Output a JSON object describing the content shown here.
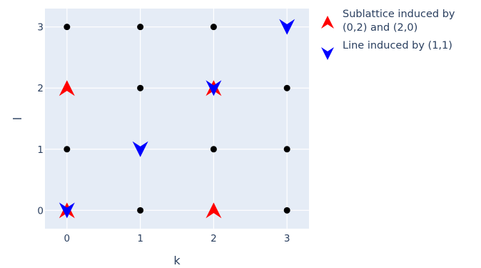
{
  "chart_data": {
    "type": "scatter",
    "xlabel": "k",
    "ylabel": "l",
    "xlim": [
      -0.3,
      3.3
    ],
    "ylim": [
      -0.3,
      3.3
    ],
    "x_ticks": [
      0,
      1,
      2,
      3
    ],
    "y_ticks": [
      0,
      1,
      2,
      3
    ],
    "x_tick_labels": [
      "0",
      "1",
      "2",
      "3"
    ],
    "y_tick_labels": [
      "0",
      "1",
      "2",
      "3"
    ],
    "grid": true,
    "legend_position": "top-right",
    "grid_points": {
      "color": "#000000",
      "marker": "circle",
      "points": [
        [
          0,
          3
        ],
        [
          1,
          3
        ],
        [
          2,
          3
        ],
        [
          1,
          2
        ],
        [
          3,
          2
        ],
        [
          0,
          1
        ],
        [
          2,
          1
        ],
        [
          3,
          1
        ],
        [
          1,
          0
        ],
        [
          3,
          0
        ]
      ]
    },
    "series": [
      {
        "name": "Sublattice induced by (0,2) and (2,0)",
        "legend_lines": [
          "Sublattice induced by",
          "(0,2) and (2,0)"
        ],
        "color": "#ff0000",
        "marker": "arrow-up",
        "points": [
          [
            0,
            2
          ],
          [
            2,
            2
          ],
          [
            0,
            0
          ],
          [
            2,
            0
          ]
        ]
      },
      {
        "name": "Line induced by (1,1)",
        "legend_lines": [
          "Line induced by (1,1)"
        ],
        "color": "#0000ff",
        "marker": "arrow-down",
        "points": [
          [
            3,
            3
          ],
          [
            2,
            2
          ],
          [
            1,
            1
          ],
          [
            0,
            0
          ]
        ]
      }
    ],
    "colors": {
      "plot_bg": "#e5ecf6",
      "grid": "#ffffff",
      "tick_text": "#2a3f5f",
      "axis_title": "#2a3f5f",
      "legend_text": "#2a3f5f"
    }
  }
}
